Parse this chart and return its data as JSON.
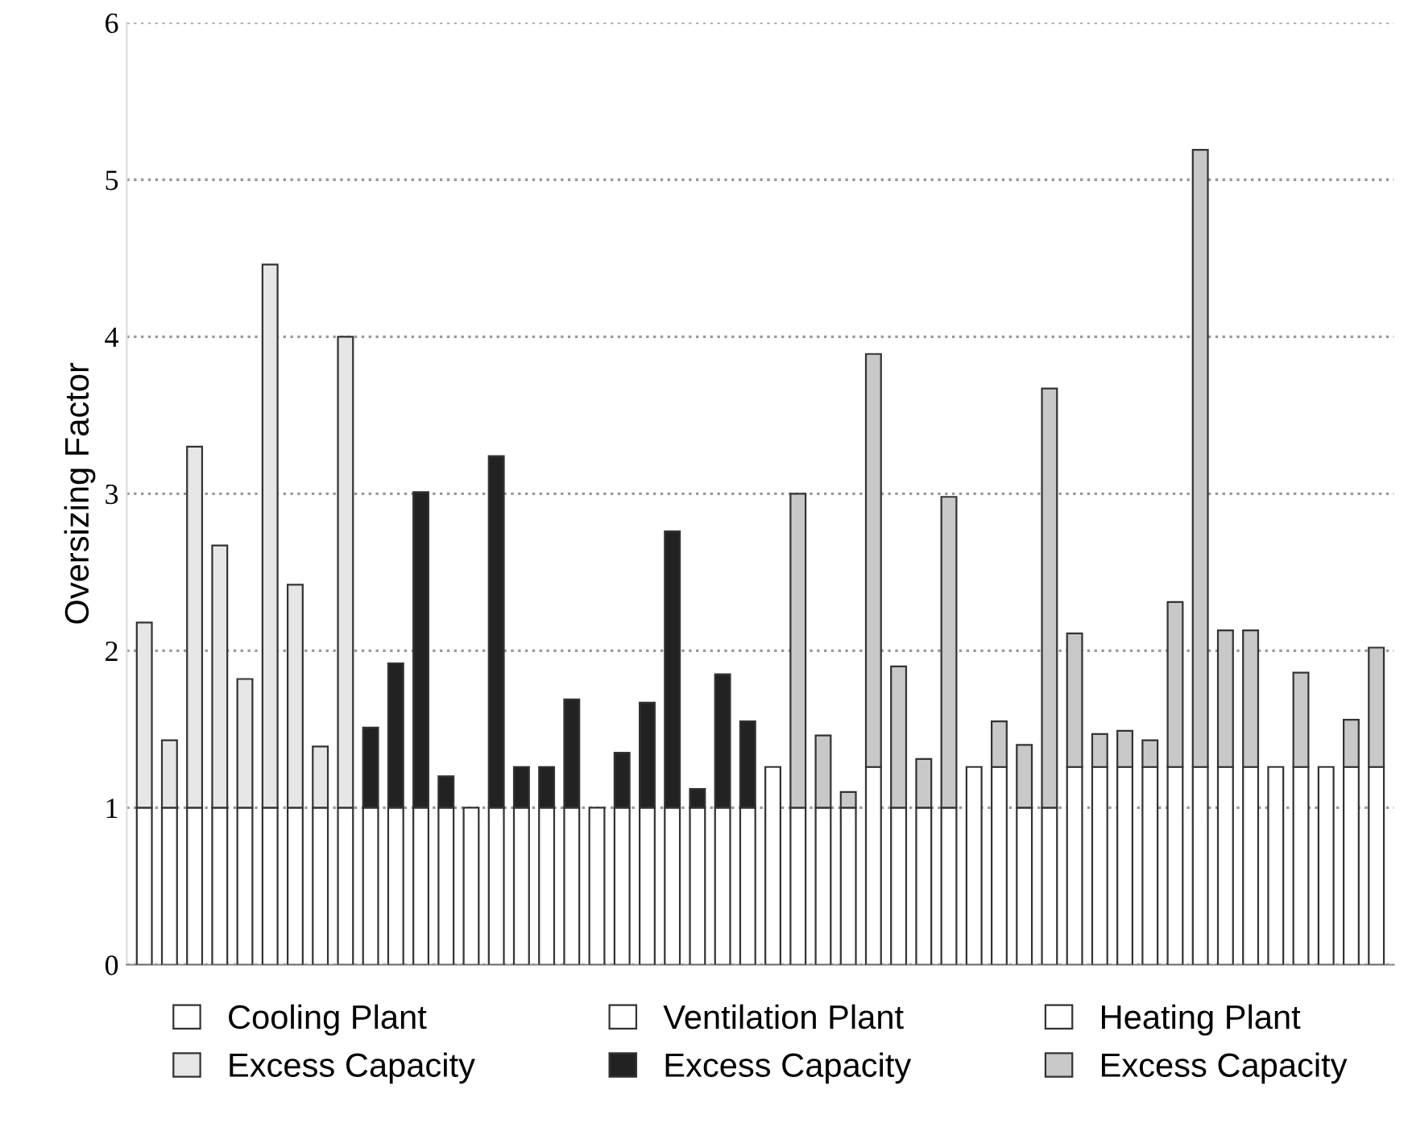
{
  "chart_data": {
    "type": "bar",
    "stacked": true,
    "ylabel": "Oversizing Factor",
    "categories": [
      null,
      null,
      null,
      null,
      null,
      null,
      null,
      null,
      null,
      null,
      null,
      null,
      null,
      null,
      null,
      null,
      null,
      null,
      null,
      null,
      null,
      null,
      null,
      null,
      null,
      null,
      null,
      null,
      null,
      null,
      null,
      null,
      null,
      null,
      null,
      null,
      null,
      null,
      null,
      null,
      null,
      null,
      null,
      null,
      null,
      null,
      null,
      null,
      null,
      null
    ],
    "series": [
      {
        "name": "Cooling Plant",
        "color": "#ffffff",
        "values": [
          1,
          1,
          1,
          1,
          1,
          1,
          1,
          1,
          1,
          null,
          null,
          null,
          null,
          null,
          null,
          null,
          null,
          null,
          null,
          null,
          null,
          null,
          null,
          null,
          null,
          null,
          null,
          null,
          null,
          null,
          null,
          null,
          null,
          null,
          null,
          null,
          null,
          null,
          null,
          null,
          null,
          null,
          null,
          null,
          null,
          null,
          null,
          null,
          null,
          null
        ]
      },
      {
        "name": "Excess Capacity",
        "color": "#e6e6e6",
        "values": [
          1.18,
          0.43,
          2.3,
          1.67,
          0.82,
          3.46,
          1.42,
          0.39,
          3.0,
          null,
          null,
          null,
          null,
          null,
          null,
          null,
          null,
          null,
          null,
          null,
          null,
          null,
          null,
          null,
          null,
          null,
          null,
          null,
          null,
          null,
          null,
          null,
          null,
          null,
          null,
          null,
          null,
          null,
          null,
          null,
          null,
          null,
          null,
          null,
          null,
          null,
          null,
          null,
          null,
          null
        ]
      },
      {
        "name": "Ventilation Plant",
        "color": "#ffffff",
        "values": [
          null,
          null,
          null,
          null,
          null,
          null,
          null,
          null,
          null,
          1,
          1,
          1,
          1,
          1,
          1,
          1,
          1,
          1,
          1,
          1,
          1,
          1,
          1,
          1,
          1,
          null,
          null,
          null,
          null,
          null,
          null,
          null,
          null,
          null,
          null,
          null,
          null,
          null,
          null,
          null,
          null,
          null,
          null,
          null,
          null,
          null,
          null,
          null,
          null,
          null
        ]
      },
      {
        "name": "Excess Capacity",
        "color": "#222222",
        "values": [
          null,
          null,
          null,
          null,
          null,
          null,
          null,
          null,
          null,
          0.51,
          0.92,
          2.01,
          0.2,
          null,
          2.24,
          0.26,
          0.26,
          0.69,
          null,
          0.35,
          0.67,
          1.76,
          0.12,
          0.85,
          0.55,
          null,
          null,
          null,
          null,
          null,
          null,
          null,
          null,
          null,
          null,
          null,
          null,
          null,
          null,
          null,
          null,
          null,
          null,
          null,
          null,
          null,
          null,
          null,
          null,
          null
        ]
      },
      {
        "name": "Heating Plant",
        "color": "#ffffff",
        "values": [
          null,
          null,
          null,
          null,
          null,
          null,
          null,
          null,
          null,
          null,
          null,
          null,
          null,
          null,
          null,
          null,
          null,
          null,
          null,
          null,
          null,
          null,
          null,
          null,
          null,
          1.26,
          1,
          1,
          1,
          1.26,
          1,
          1,
          1,
          1.26,
          1.26,
          1,
          1,
          1.26,
          1.26,
          1.26,
          1.26,
          1.26,
          1.26,
          1.26,
          1.26,
          1.26,
          1.26,
          1.26,
          1.26,
          1.26
        ]
      },
      {
        "name": "Excess Capacity",
        "color": "#c8c8c8",
        "values": [
          null,
          null,
          null,
          null,
          null,
          null,
          null,
          null,
          null,
          null,
          null,
          null,
          null,
          null,
          null,
          null,
          null,
          null,
          null,
          null,
          null,
          null,
          null,
          null,
          null,
          null,
          2.0,
          0.46,
          0.1,
          2.63,
          0.9,
          0.31,
          1.98,
          null,
          0.29,
          0.4,
          2.67,
          0.85,
          0.21,
          0.23,
          0.17,
          1.05,
          3.93,
          0.87,
          0.87,
          null,
          0.6,
          null,
          0.3,
          0.76
        ]
      }
    ],
    "ylim": [
      0,
      6
    ],
    "yticks": [
      0,
      1,
      2,
      3,
      4,
      5,
      6
    ],
    "grid": "y",
    "legend": "bottom"
  }
}
